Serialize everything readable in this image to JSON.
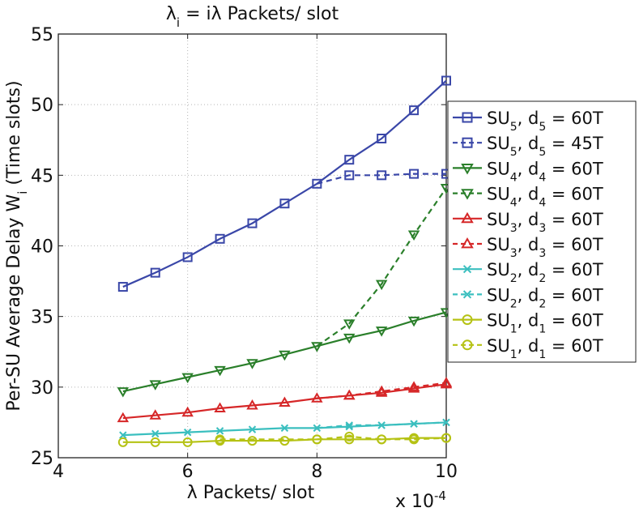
{
  "chart_data": {
    "type": "line",
    "title": {
      "lam": "λ",
      "i": "i",
      "eq": " = iλ Packets/ slot"
    },
    "xlabel": "λ Packets/ slot",
    "x_exponent": "x 10",
    "x_exponent_power": "-4",
    "ylabel": {
      "main": "Per-SU Average Delay W",
      "sub": "i",
      "tail": " (Time slots)"
    },
    "x_scale_factor": 0.0001,
    "xlim": [
      4,
      10
    ],
    "ylim": [
      25,
      55
    ],
    "x_ticks": [
      "4",
      "6",
      "8",
      "10"
    ],
    "x_tick_values": [
      4,
      6,
      8,
      10
    ],
    "y_ticks": [
      "25",
      "30",
      "35",
      "40",
      "45",
      "50",
      "55"
    ],
    "y_tick_values": [
      25,
      30,
      35,
      40,
      45,
      50,
      55
    ],
    "grid": true,
    "legend_position": "right",
    "x": [
      5,
      5.5,
      6,
      6.5,
      7,
      7.5,
      8,
      8.5,
      9,
      9.5,
      10
    ],
    "series": [
      {
        "name": "SU5, d5 = 60T",
        "su": "5",
        "d": "60T",
        "color": "#3a47a8",
        "marker": "square",
        "dash": "solid",
        "values": [
          37.1,
          38.1,
          39.2,
          40.5,
          41.6,
          43.0,
          44.4,
          46.1,
          47.6,
          49.6,
          51.7
        ]
      },
      {
        "name": "SU5, d5 = 45T",
        "su": "5",
        "d": "45T",
        "color": "#3a47a8",
        "marker": "square",
        "dash": "dashed",
        "values": [
          null,
          null,
          null,
          null,
          null,
          null,
          44.4,
          45.0,
          45.0,
          45.1,
          45.1
        ]
      },
      {
        "name": "SU4, d4 = 60T",
        "su": "4",
        "d": "60T",
        "color": "#2a7f2a",
        "marker": "triangle-down",
        "dash": "solid",
        "values": [
          29.7,
          30.2,
          30.7,
          31.2,
          31.7,
          32.3,
          32.9,
          33.5,
          34.0,
          34.7,
          35.3
        ]
      },
      {
        "name": "SU4, d4 = 60T",
        "su": "4",
        "d": "60T",
        "color": "#2a7f2a",
        "marker": "triangle-down",
        "dash": "dashed",
        "values": [
          null,
          null,
          null,
          null,
          null,
          null,
          32.9,
          34.5,
          37.3,
          40.8,
          44.1
        ]
      },
      {
        "name": "SU3, d3 = 60T",
        "su": "3",
        "d": "60T",
        "color": "#d62728",
        "marker": "triangle-up",
        "dash": "solid",
        "values": [
          27.8,
          28.0,
          28.2,
          28.5,
          28.7,
          28.9,
          29.2,
          29.4,
          29.6,
          29.9,
          30.2
        ]
      },
      {
        "name": "SU3, d3 = 60T",
        "su": "3",
        "d": "60T",
        "color": "#d62728",
        "marker": "triangle-up",
        "dash": "dashed",
        "values": [
          null,
          null,
          null,
          null,
          null,
          null,
          29.2,
          29.4,
          29.7,
          30.0,
          30.3
        ]
      },
      {
        "name": "SU2, d2 = 60T",
        "su": "2",
        "d": "60T",
        "color": "#3bbfbf",
        "marker": "x",
        "dash": "solid",
        "values": [
          26.6,
          26.7,
          26.8,
          26.9,
          27.0,
          27.1,
          27.1,
          27.2,
          27.3,
          27.4,
          27.5
        ]
      },
      {
        "name": "SU2, d2 = 60T",
        "su": "2",
        "d": "60T",
        "color": "#3bbfbf",
        "marker": "x",
        "dash": "dashed",
        "values": [
          null,
          null,
          null,
          null,
          null,
          null,
          27.1,
          27.3,
          27.3,
          27.4,
          27.5
        ]
      },
      {
        "name": "SU1, d1 = 60T",
        "su": "1",
        "d": "60T",
        "color": "#b5c214",
        "marker": "circle",
        "dash": "solid",
        "values": [
          26.1,
          26.1,
          26.1,
          26.2,
          26.2,
          26.2,
          26.3,
          26.3,
          26.3,
          26.4,
          26.4
        ]
      },
      {
        "name": "SU1, d1 = 60T",
        "su": "1",
        "d": "60T",
        "color": "#b5c214",
        "marker": "circle",
        "dash": "dashed",
        "values": [
          null,
          null,
          null,
          26.3,
          null,
          null,
          26.3,
          26.5,
          26.3,
          26.3,
          26.4
        ]
      }
    ]
  }
}
